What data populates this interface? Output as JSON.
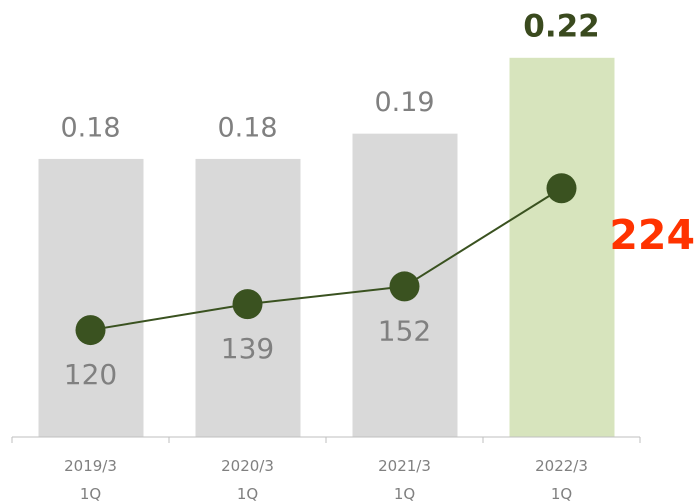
{
  "chart_data": {
    "type": "bar",
    "categories": [
      [
        "2019/3",
        "1Q"
      ],
      [
        "2020/3",
        "1Q"
      ],
      [
        "2021/3",
        "1Q"
      ],
      [
        "2022/3",
        "1Q"
      ]
    ],
    "series": [
      {
        "type": "bar",
        "colors": [
          "#d9d9d9",
          "#d9d9d9",
          "#d9d9d9",
          "#d7e4bd"
        ],
        "values": [
          0.18,
          0.18,
          0.19,
          0.22
        ]
      },
      {
        "type": "line",
        "axis": "y2",
        "color": "#3a5220",
        "values": [
          120,
          139,
          152,
          224
        ]
      }
    ],
    "ylim": [
      0.07,
      0.231
    ],
    "y2lim": [
      41.6,
      340
    ]
  }
}
